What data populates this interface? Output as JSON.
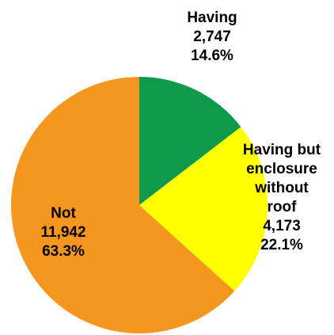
{
  "chart_data": {
    "type": "pie",
    "start": "12 o'clock, clockwise",
    "slices": [
      {
        "label_lines": [
          "Having"
        ],
        "count": 2747,
        "count_text": "2,747",
        "percent": 14.6,
        "percent_text": "14.6%",
        "color": "#0e9a4a"
      },
      {
        "label_lines": [
          "Having but",
          "enclosure",
          "without",
          "roof"
        ],
        "count": 4173,
        "count_text": "4,173",
        "percent": 22.1,
        "percent_text": "22.1%",
        "color": "#ffff00"
      },
      {
        "label_lines": [
          "Not"
        ],
        "count": 11942,
        "count_text": "11,942",
        "percent": 63.3,
        "percent_text": "63.3%",
        "color": "#f5961e"
      }
    ]
  }
}
